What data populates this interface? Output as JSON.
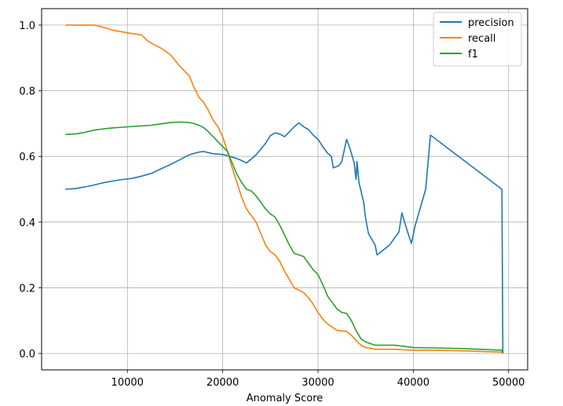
{
  "chart_data": {
    "type": "line",
    "title": "",
    "xlabel": "Anomaly Score",
    "ylabel": "",
    "xlim": [
      1000,
      52000
    ],
    "ylim": [
      -0.05,
      1.05
    ],
    "xticks": [
      10000,
      20000,
      30000,
      40000,
      50000
    ],
    "xtick_labels": [
      "10000",
      "20000",
      "30000",
      "40000",
      "50000"
    ],
    "yticks": [
      0.0,
      0.2,
      0.4,
      0.6,
      0.8,
      1.0
    ],
    "ytick_labels": [
      "0.0",
      "0.2",
      "0.4",
      "0.6",
      "0.8",
      "1.0"
    ],
    "grid": true,
    "legend_position": "top-right",
    "series": [
      {
        "name": "precision",
        "color": "#1f77b4",
        "points": [
          [
            3500,
            0.5
          ],
          [
            4500,
            0.502
          ],
          [
            5500,
            0.507
          ],
          [
            6500,
            0.513
          ],
          [
            7500,
            0.52
          ],
          [
            8500,
            0.525
          ],
          [
            9500,
            0.53
          ],
          [
            10500,
            0.533
          ],
          [
            11500,
            0.54
          ],
          [
            12500,
            0.548
          ],
          [
            13500,
            0.562
          ],
          [
            14500,
            0.575
          ],
          [
            15500,
            0.59
          ],
          [
            16500,
            0.605
          ],
          [
            17500,
            0.613
          ],
          [
            18000,
            0.615
          ],
          [
            19000,
            0.608
          ],
          [
            20000,
            0.606
          ],
          [
            21000,
            0.598
          ],
          [
            21800,
            0.59
          ],
          [
            22500,
            0.58
          ],
          [
            23000,
            0.592
          ],
          [
            23500,
            0.605
          ],
          [
            24000,
            0.622
          ],
          [
            24500,
            0.64
          ],
          [
            25000,
            0.663
          ],
          [
            25500,
            0.672
          ],
          [
            26000,
            0.668
          ],
          [
            26500,
            0.66
          ],
          [
            27000,
            0.675
          ],
          [
            27500,
            0.69
          ],
          [
            28000,
            0.702
          ],
          [
            28500,
            0.69
          ],
          [
            29000,
            0.682
          ],
          [
            29500,
            0.665
          ],
          [
            30000,
            0.652
          ],
          [
            30500,
            0.63
          ],
          [
            31000,
            0.61
          ],
          [
            31400,
            0.6
          ],
          [
            31600,
            0.565
          ],
          [
            32200,
            0.572
          ],
          [
            32500,
            0.585
          ],
          [
            33000,
            0.652
          ],
          [
            33400,
            0.62
          ],
          [
            33800,
            0.58
          ],
          [
            34000,
            0.53
          ],
          [
            34100,
            0.585
          ],
          [
            34300,
            0.52
          ],
          [
            34800,
            0.46
          ],
          [
            35000,
            0.41
          ],
          [
            35300,
            0.365
          ],
          [
            36000,
            0.33
          ],
          [
            36200,
            0.3
          ],
          [
            37500,
            0.33
          ],
          [
            38500,
            0.37
          ],
          [
            38800,
            0.428
          ],
          [
            39400,
            0.37
          ],
          [
            39800,
            0.335
          ],
          [
            40200,
            0.39
          ],
          [
            41300,
            0.5
          ],
          [
            41800,
            0.665
          ],
          [
            49300,
            0.5
          ],
          [
            49400,
            0.0
          ]
        ]
      },
      {
        "name": "recall",
        "color": "#ff7f0e",
        "points": [
          [
            3500,
            1.0
          ],
          [
            5000,
            1.0
          ],
          [
            6500,
            1.0
          ],
          [
            7500,
            0.993
          ],
          [
            8500,
            0.984
          ],
          [
            9500,
            0.979
          ],
          [
            10500,
            0.974
          ],
          [
            11500,
            0.97
          ],
          [
            12000,
            0.955
          ],
          [
            12500,
            0.945
          ],
          [
            13500,
            0.93
          ],
          [
            14500,
            0.91
          ],
          [
            15500,
            0.875
          ],
          [
            16500,
            0.845
          ],
          [
            17000,
            0.81
          ],
          [
            17500,
            0.78
          ],
          [
            18000,
            0.765
          ],
          [
            18500,
            0.74
          ],
          [
            19000,
            0.71
          ],
          [
            19500,
            0.69
          ],
          [
            20000,
            0.66
          ],
          [
            20500,
            0.615
          ],
          [
            21000,
            0.565
          ],
          [
            21500,
            0.52
          ],
          [
            22000,
            0.475
          ],
          [
            22500,
            0.44
          ],
          [
            23000,
            0.42
          ],
          [
            23500,
            0.4
          ],
          [
            24000,
            0.365
          ],
          [
            24500,
            0.33
          ],
          [
            25000,
            0.31
          ],
          [
            25500,
            0.3
          ],
          [
            26000,
            0.28
          ],
          [
            26500,
            0.25
          ],
          [
            27000,
            0.225
          ],
          [
            27500,
            0.2
          ],
          [
            28000,
            0.193
          ],
          [
            28500,
            0.185
          ],
          [
            29000,
            0.17
          ],
          [
            29500,
            0.15
          ],
          [
            30000,
            0.125
          ],
          [
            30500,
            0.105
          ],
          [
            31000,
            0.09
          ],
          [
            31500,
            0.08
          ],
          [
            32000,
            0.07
          ],
          [
            33000,
            0.067
          ],
          [
            33500,
            0.055
          ],
          [
            34000,
            0.04
          ],
          [
            34500,
            0.025
          ],
          [
            35000,
            0.018
          ],
          [
            36000,
            0.013
          ],
          [
            38000,
            0.013
          ],
          [
            39000,
            0.011
          ],
          [
            40000,
            0.01
          ],
          [
            42000,
            0.01
          ],
          [
            45000,
            0.008
          ],
          [
            49300,
            0.004
          ],
          [
            49400,
            0.0
          ]
        ]
      },
      {
        "name": "f1",
        "color": "#2ca02c",
        "points": [
          [
            3500,
            0.667
          ],
          [
            4500,
            0.668
          ],
          [
            5500,
            0.673
          ],
          [
            6500,
            0.68
          ],
          [
            7500,
            0.684
          ],
          [
            8500,
            0.687
          ],
          [
            9500,
            0.689
          ],
          [
            10500,
            0.691
          ],
          [
            11500,
            0.693
          ],
          [
            12500,
            0.695
          ],
          [
            13500,
            0.699
          ],
          [
            14500,
            0.703
          ],
          [
            15500,
            0.705
          ],
          [
            16500,
            0.703
          ],
          [
            17000,
            0.7
          ],
          [
            17500,
            0.695
          ],
          [
            18000,
            0.688
          ],
          [
            18500,
            0.675
          ],
          [
            19000,
            0.66
          ],
          [
            19500,
            0.645
          ],
          [
            20000,
            0.63
          ],
          [
            20500,
            0.615
          ],
          [
            21000,
            0.58
          ],
          [
            21500,
            0.545
          ],
          [
            22000,
            0.52
          ],
          [
            22500,
            0.5
          ],
          [
            23000,
            0.495
          ],
          [
            23500,
            0.48
          ],
          [
            24000,
            0.46
          ],
          [
            24500,
            0.44
          ],
          [
            25000,
            0.425
          ],
          [
            25500,
            0.415
          ],
          [
            26000,
            0.39
          ],
          [
            26500,
            0.36
          ],
          [
            27000,
            0.33
          ],
          [
            27500,
            0.305
          ],
          [
            28000,
            0.3
          ],
          [
            28500,
            0.295
          ],
          [
            29000,
            0.275
          ],
          [
            29500,
            0.255
          ],
          [
            30000,
            0.24
          ],
          [
            30500,
            0.21
          ],
          [
            31000,
            0.175
          ],
          [
            31500,
            0.155
          ],
          [
            32000,
            0.135
          ],
          [
            32500,
            0.125
          ],
          [
            33000,
            0.122
          ],
          [
            33500,
            0.1
          ],
          [
            34000,
            0.07
          ],
          [
            34500,
            0.045
          ],
          [
            35000,
            0.035
          ],
          [
            36000,
            0.025
          ],
          [
            38000,
            0.025
          ],
          [
            39000,
            0.022
          ],
          [
            40000,
            0.018
          ],
          [
            42000,
            0.017
          ],
          [
            45000,
            0.015
          ],
          [
            49300,
            0.01
          ],
          [
            49400,
            0.0
          ]
        ]
      }
    ]
  }
}
